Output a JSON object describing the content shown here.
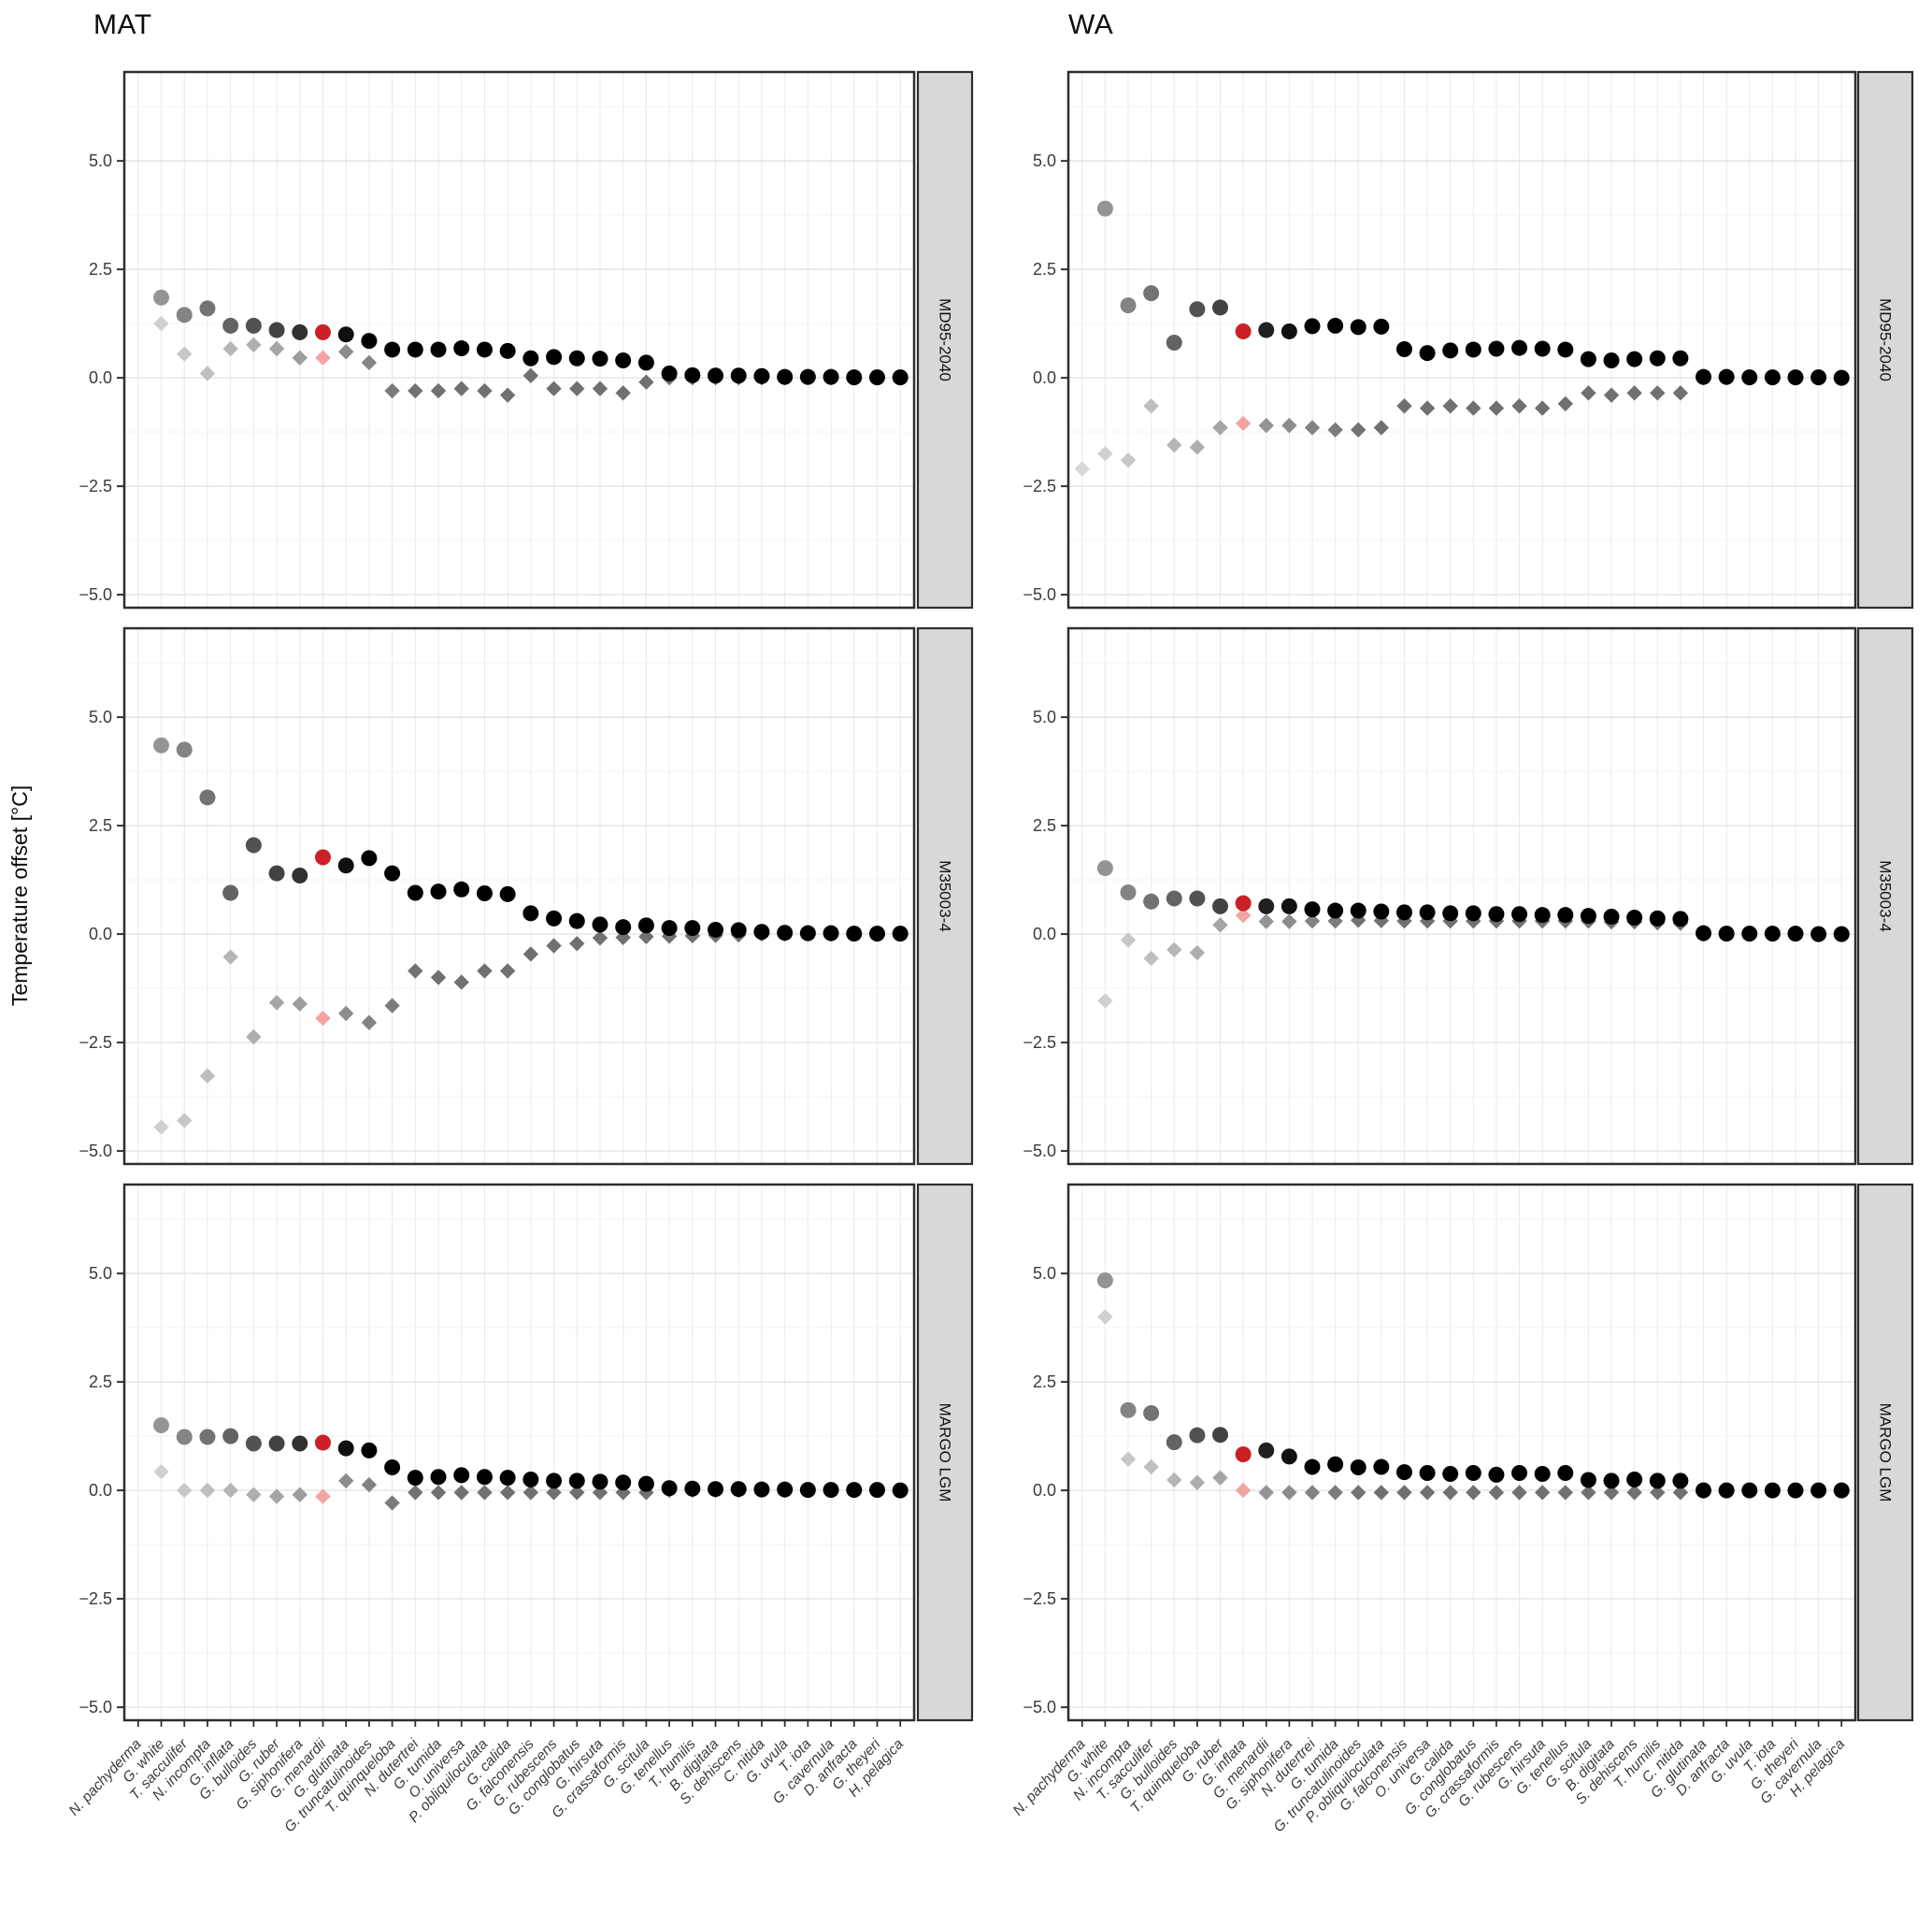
{
  "chart_data": {
    "type": "scatter",
    "y_axis_label": "Temperature offset [°C]",
    "y_tick_labels": [
      "5.0",
      "2.5",
      "0.0",
      "−2.5",
      "−5.0"
    ],
    "y_tick_values": [
      5.0,
      2.5,
      0.0,
      -2.5,
      -5.0
    ],
    "y_minor_values": [
      6.25,
      3.75,
      1.25,
      -1.25,
      -3.75
    ],
    "ylim": [
      -5.3,
      7.05
    ],
    "grid": "on",
    "legend": "none",
    "facet_rows": [
      "MD95-2040",
      "M35003-4",
      "MARGO LGM"
    ],
    "facet_columns": [
      "MAT",
      "WA"
    ],
    "marker_shapes": [
      "circle",
      "diamond"
    ],
    "columns": [
      {
        "method": "MAT",
        "highlight_category": "G. menardii",
        "highlight_index": 8,
        "categories": [
          "N. pachyderma",
          "G. white",
          "T. sacculifer",
          "N. incompta",
          "G. inflata",
          "G. bulloides",
          "G. ruber",
          "G. siphonifera",
          "G. menardii",
          "G. glutinata",
          "G. truncatulinoides",
          "T. quinqueloba",
          "N. dutertrei",
          "G. tumida",
          "O. universa",
          "P. obliquiloculata",
          "G. calida",
          "G. falconensis",
          "G. rubescens",
          "G. conglobatus",
          "G. hirsuta",
          "G. crassaformis",
          "G. scitula",
          "G. tenellus",
          "T. humilis",
          "B. digitata",
          "S. dehiscens",
          "C. nitida",
          "G. uvula",
          "T. iota",
          "G. cavernula",
          "D. anfracta",
          "G. theyeri",
          "H. pelagica"
        ],
        "panels": [
          {
            "core": "MD95-2040",
            "circles": [
              null,
              1.85,
              1.45,
              1.6,
              1.2,
              1.2,
              1.1,
              1.05,
              1.05,
              1.0,
              0.85,
              0.65,
              0.65,
              0.65,
              0.68,
              0.65,
              0.62,
              0.45,
              0.48,
              0.45,
              0.44,
              0.4,
              0.35,
              0.1,
              0.06,
              0.05,
              0.05,
              0.04,
              0.02,
              0.02,
              0.02,
              0.01,
              0.01,
              0.01
            ],
            "diamonds": [
              null,
              1.25,
              0.55,
              0.1,
              0.67,
              0.76,
              0.67,
              0.46,
              0.46,
              0.6,
              0.35,
              -0.3,
              -0.3,
              -0.3,
              -0.25,
              -0.3,
              -0.4,
              0.05,
              -0.25,
              -0.25,
              -0.25,
              -0.35,
              -0.1,
              0,
              0,
              0,
              0,
              0,
              0,
              0,
              0,
              0,
              0,
              0
            ]
          },
          {
            "core": "M35003-4",
            "circles": [
              null,
              4.35,
              4.25,
              3.15,
              0.95,
              2.05,
              1.4,
              1.35,
              1.77,
              1.58,
              1.75,
              1.4,
              0.95,
              0.98,
              1.03,
              0.94,
              0.92,
              0.48,
              0.36,
              0.3,
              0.22,
              0.16,
              0.2,
              0.14,
              0.14,
              0.1,
              0.09,
              0.05,
              0.03,
              0.02,
              0.02,
              0.01,
              0.01,
              0.01
            ],
            "diamonds": [
              null,
              -4.45,
              -4.3,
              -3.27,
              -0.53,
              -2.37,
              -1.58,
              -1.61,
              -1.94,
              -1.83,
              -2.04,
              -1.65,
              -0.85,
              -1.0,
              -1.11,
              -0.85,
              -0.85,
              -0.46,
              -0.27,
              -0.22,
              -0.09,
              -0.08,
              -0.06,
              -0.05,
              -0.04,
              -0.03,
              -0.02,
              0,
              0,
              0,
              0,
              0,
              0,
              0
            ]
          },
          {
            "core": "MARGO LGM",
            "circles": [
              null,
              1.5,
              1.23,
              1.23,
              1.25,
              1.08,
              1.08,
              1.08,
              1.1,
              0.97,
              0.92,
              0.53,
              0.29,
              0.31,
              0.35,
              0.31,
              0.29,
              0.25,
              0.22,
              0.22,
              0.2,
              0.18,
              0.15,
              0.05,
              0.04,
              0.03,
              0.03,
              0.02,
              0.02,
              0.01,
              0.01,
              0.01,
              0.01,
              0.0
            ],
            "diamonds": [
              null,
              0.43,
              0.0,
              0.0,
              0.0,
              -0.1,
              -0.14,
              -0.1,
              -0.14,
              0.22,
              0.13,
              -0.29,
              -0.05,
              -0.05,
              -0.05,
              -0.05,
              -0.05,
              -0.05,
              -0.05,
              -0.05,
              -0.05,
              -0.05,
              -0.05,
              0,
              0,
              0,
              0,
              0,
              0,
              0,
              0,
              0,
              0,
              0
            ]
          }
        ]
      },
      {
        "method": "WA",
        "highlight_category": "G. inflata",
        "highlight_index": 7,
        "categories": [
          "N. pachyderma",
          "G. white",
          "N. incompta",
          "T. sacculifer",
          "G. bulloides",
          "T. quinqueloba",
          "G. ruber",
          "G. inflata",
          "G. menardii",
          "G. siphonifera",
          "N. dutertrei",
          "G. tumida",
          "G. truncatulinoides",
          "P. obliquiloculata",
          "G. falconensis",
          "O. universa",
          "G. calida",
          "G. conglobatus",
          "G. crassaformis",
          "G. rubescens",
          "G. hirsuta",
          "G. tenellus",
          "G. scitula",
          "B. digitata",
          "S. dehiscens",
          "T. humilis",
          "C. nitida",
          "G. glutinata",
          "D. anfracta",
          "G. uvula",
          "T. iota",
          "G. theyeri",
          "G. cavernula",
          "H. pelagica"
        ],
        "panels": [
          {
            "core": "MD95-2040",
            "circles": [
              null,
              3.9,
              1.67,
              1.95,
              0.81,
              1.58,
              1.62,
              1.07,
              1.1,
              1.07,
              1.19,
              1.2,
              1.17,
              1.18,
              0.66,
              0.57,
              0.63,
              0.65,
              0.67,
              0.69,
              0.67,
              0.65,
              0.43,
              0.4,
              0.43,
              0.45,
              0.45,
              0.02,
              0.02,
              0.01,
              0.01,
              0.01,
              0.01,
              0.0
            ],
            "diamonds": [
              -2.1,
              -1.75,
              -1.9,
              -0.65,
              -1.55,
              -1.6,
              -1.15,
              -1.05,
              -1.1,
              -1.1,
              -1.15,
              -1.2,
              -1.2,
              -1.15,
              -0.65,
              -0.7,
              -0.65,
              -0.7,
              -0.7,
              -0.65,
              -0.7,
              -0.6,
              -0.35,
              -0.4,
              -0.35,
              -0.35,
              -0.35,
              0,
              0,
              0,
              0,
              0,
              0,
              0
            ]
          },
          {
            "core": "M35003-4",
            "circles": [
              null,
              1.52,
              0.96,
              0.75,
              0.82,
              0.82,
              0.64,
              0.71,
              0.64,
              0.64,
              0.57,
              0.54,
              0.54,
              0.52,
              0.5,
              0.5,
              0.48,
              0.48,
              0.46,
              0.46,
              0.44,
              0.44,
              0.42,
              0.4,
              0.38,
              0.36,
              0.35,
              0.02,
              0.01,
              0.01,
              0.01,
              0.01,
              0.0,
              0.0
            ],
            "diamonds": [
              null,
              -1.54,
              -0.14,
              -0.56,
              -0.36,
              -0.43,
              0.21,
              0.43,
              0.29,
              0.29,
              0.3,
              0.3,
              0.32,
              0.31,
              0.3,
              0.3,
              0.3,
              0.3,
              0.3,
              0.3,
              0.3,
              0.3,
              0.3,
              0.28,
              0.28,
              0.26,
              0.25,
              0,
              0,
              0,
              0,
              0,
              0,
              0
            ]
          },
          {
            "core": "MARGO LGM",
            "circles": [
              null,
              4.84,
              1.85,
              1.78,
              1.11,
              1.27,
              1.28,
              0.83,
              0.92,
              0.78,
              0.54,
              0.6,
              0.53,
              0.54,
              0.42,
              0.4,
              0.38,
              0.4,
              0.36,
              0.4,
              0.38,
              0.4,
              0.24,
              0.22,
              0.25,
              0.22,
              0.22,
              0.0,
              0.0,
              0.0,
              0.0,
              0.0,
              0.0,
              0.0
            ],
            "diamonds": [
              null,
              4.0,
              0.72,
              0.54,
              0.24,
              0.18,
              0.29,
              0.0,
              -0.05,
              -0.05,
              -0.05,
              -0.05,
              -0.05,
              -0.05,
              -0.05,
              -0.05,
              -0.05,
              -0.05,
              -0.05,
              -0.05,
              -0.05,
              -0.05,
              -0.05,
              -0.05,
              -0.05,
              -0.05,
              -0.05,
              0,
              0,
              0,
              0,
              0,
              0,
              0
            ]
          }
        ]
      }
    ],
    "colors": {
      "highlight_circle": "#cb2026",
      "highlight_diamond": "#f2a4a1",
      "point_black": "#000000",
      "strip_fill": "#d8d8d8",
      "strip_border": "#2e2e2e",
      "panel_border": "#2e2e2e",
      "grid_major": "#e3e3e3",
      "grid_minor": "#f2f2f2",
      "grid_category": "#e9e9e9",
      "axis_text": "#3a3a3a",
      "title_text": "#0d0d0d"
    }
  }
}
